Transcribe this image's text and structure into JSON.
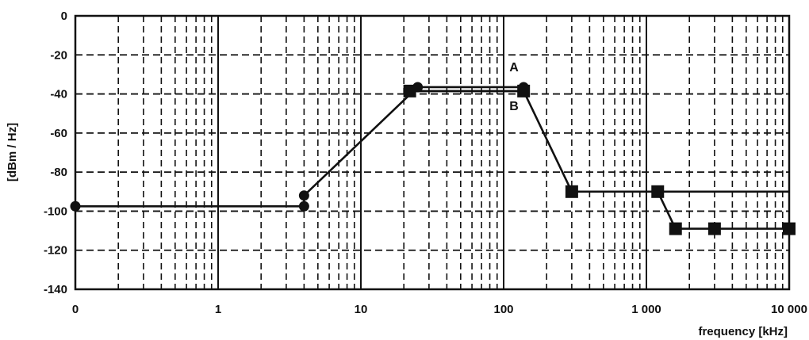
{
  "chart_data": {
    "type": "line",
    "xlabel": "frequency [kHz]",
    "ylabel": "[dBm / Hz]",
    "x_scale": "log",
    "x_tick_labels": [
      "0",
      "1",
      "10",
      "100",
      "1 000",
      "10 000"
    ],
    "y_tick_labels": [
      "0",
      "-20",
      "-40",
      "-60",
      "-80",
      "-100",
      "-120",
      "-140"
    ],
    "ylim": [
      -140,
      0
    ],
    "grid": true,
    "annotations": [
      "A",
      "B"
    ],
    "series": [
      {
        "marker": "circle",
        "points": [
          {
            "x": 0,
            "y": -97.5
          },
          {
            "x": 4,
            "y": -97.5
          },
          {
            "x": 4,
            "y": -92
          },
          {
            "x": 25,
            "y": -36.5
          },
          {
            "x": 138,
            "y": -36.5
          },
          {
            "x": 138,
            "y": -38.5
          },
          {
            "x": 22,
            "y": -38.5
          }
        ]
      },
      {
        "marker": "square",
        "points": [
          {
            "x": 22,
            "y": -38.5
          },
          {
            "x": 138,
            "y": -38.5
          },
          {
            "x": 300,
            "y": -90
          },
          {
            "x": 1200,
            "y": -90
          },
          {
            "x": 1600,
            "y": -109
          },
          {
            "x": 3000,
            "y": -109
          },
          {
            "x": 10000,
            "y": -109
          }
        ]
      },
      {
        "marker": "none",
        "points": [
          {
            "x": 1200,
            "y": -90
          },
          {
            "x": 10000,
            "y": -90
          }
        ]
      }
    ]
  }
}
